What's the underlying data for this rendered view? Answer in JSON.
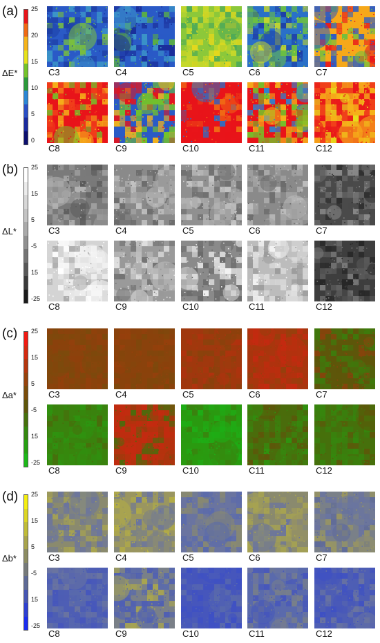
{
  "chart_data": [
    {
      "type": "heatmap",
      "panel_label": "(a)",
      "quantity": "ΔE*",
      "colorbar": {
        "ticks": [
          "25",
          "20",
          "15",
          "10",
          "5",
          "0"
        ],
        "colors": [
          "#e8141a",
          "#f06a14",
          "#f6b41a",
          "#e6e21c",
          "#74c32a",
          "#2a9a3a",
          "#2b86d4",
          "#2a4fc6",
          "#1a2a9e",
          "#0c0f6e"
        ]
      },
      "samples": [
        {
          "label": "C3",
          "colors": [
            "#2a5ac6",
            "#1e3fa6",
            "#3c96c8",
            "#7cc23a"
          ]
        },
        {
          "label": "C4",
          "colors": [
            "#2a5ac6",
            "#1a2e9a",
            "#3c96c8",
            "#5cb040"
          ]
        },
        {
          "label": "C5",
          "colors": [
            "#8cc83a",
            "#c8d82a",
            "#4aa85a",
            "#e6d81c"
          ]
        },
        {
          "label": "C6",
          "colors": [
            "#2a70c8",
            "#6cc040",
            "#1e3fa6",
            "#c8d82a"
          ]
        },
        {
          "label": "C7",
          "colors": [
            "#f6a81a",
            "#2a5ac6",
            "#e8141a",
            "#6cc040"
          ]
        },
        {
          "label": "C8",
          "colors": [
            "#e8141a",
            "#f0401a",
            "#f6b41a",
            "#74c32a"
          ]
        },
        {
          "label": "C9",
          "colors": [
            "#2a5ac6",
            "#74c32a",
            "#e8141a",
            "#f6b41a"
          ]
        },
        {
          "label": "C10",
          "colors": [
            "#e8141a",
            "#e8141a",
            "#f06a14",
            "#2a70c8"
          ]
        },
        {
          "label": "C11",
          "colors": [
            "#e8141a",
            "#74c32a",
            "#f6b41a",
            "#2a86d4"
          ]
        },
        {
          "label": "C12",
          "colors": [
            "#f0401a",
            "#f6b41a",
            "#e8141a",
            "#e6e21c"
          ]
        }
      ]
    },
    {
      "type": "heatmap",
      "panel_label": "(b)",
      "quantity": "ΔL*",
      "colorbar": {
        "ticks": [
          "25",
          "15",
          "5",
          "-5",
          "15",
          "-25"
        ],
        "colors": [
          "#ffffff",
          "#ececec",
          "#d8d8d8",
          "#c4c4c4",
          "#aaaaaa",
          "#909090",
          "#747474",
          "#585858",
          "#3a3a3a",
          "#1a1a1a"
        ]
      },
      "samples": [
        {
          "label": "C3",
          "colors": [
            "#7a7a7a",
            "#9a9a9a",
            "#5a5a5a",
            "#b4b4b4"
          ]
        },
        {
          "label": "C4",
          "colors": [
            "#8a8a8a",
            "#a8a8a8",
            "#6a6a6a",
            "#c4c4c4"
          ]
        },
        {
          "label": "C5",
          "colors": [
            "#909090",
            "#b0b0b0",
            "#6e6e6e",
            "#c8c8c8"
          ]
        },
        {
          "label": "C6",
          "colors": [
            "#8a8a8a",
            "#a4a4a4",
            "#6a6a6a",
            "#c0c0c0"
          ]
        },
        {
          "label": "C7",
          "colors": [
            "#4a4a4a",
            "#6a6a6a",
            "#2e2e2e",
            "#8a8a8a"
          ]
        },
        {
          "label": "C8",
          "colors": [
            "#d4d4d4",
            "#f0f0f0",
            "#a8a8a8",
            "#ffffff"
          ]
        },
        {
          "label": "C9",
          "colors": [
            "#9a9a9a",
            "#c0c0c0",
            "#747474",
            "#e0e0e0"
          ]
        },
        {
          "label": "C10",
          "colors": [
            "#8a8a8a",
            "#d8d8d8",
            "#6a6a6a",
            "#f4f4f4"
          ]
        },
        {
          "label": "C11",
          "colors": [
            "#bcbcbc",
            "#dcdcdc",
            "#9a9a9a",
            "#f4f4f4"
          ]
        },
        {
          "label": "C12",
          "colors": [
            "#3e3e3e",
            "#5a5a5a",
            "#262626",
            "#7a7a7a"
          ]
        }
      ]
    },
    {
      "type": "heatmap",
      "panel_label": "(c)",
      "quantity": "Δa*",
      "colorbar": {
        "ticks": [
          "25",
          "15",
          "5",
          "-5",
          "15",
          "-25"
        ],
        "colors": [
          "#f21a12",
          "#d42a10",
          "#b4360e",
          "#96420c",
          "#7a4c0a",
          "#5e560a",
          "#46700c",
          "#34880e",
          "#26a012",
          "#1cb818"
        ]
      },
      "samples": [
        {
          "label": "C3",
          "colors": [
            "#8a420c",
            "#7c4a0c",
            "#92400c",
            "#84460c"
          ]
        },
        {
          "label": "C4",
          "colors": [
            "#8a420c",
            "#7e480c",
            "#96400c",
            "#86460c"
          ]
        },
        {
          "label": "C5",
          "colors": [
            "#a0380e",
            "#8a420c",
            "#b0320e",
            "#96400c"
          ]
        },
        {
          "label": "C6",
          "colors": [
            "#a8360e",
            "#c42a10",
            "#96400c",
            "#b4300e"
          ]
        },
        {
          "label": "C7",
          "colors": [
            "#5e560a",
            "#3e7a0c",
            "#8a420c",
            "#4a6c0c"
          ]
        },
        {
          "label": "C8",
          "colors": [
            "#3a820e",
            "#2e9410",
            "#4a6c0c",
            "#36880e"
          ]
        },
        {
          "label": "C9",
          "colors": [
            "#b4320e",
            "#c42a10",
            "#4a6c0c",
            "#9a3c0c"
          ]
        },
        {
          "label": "C10",
          "colors": [
            "#2a9a10",
            "#1eae16",
            "#3a820e",
            "#26a012"
          ]
        },
        {
          "label": "C11",
          "colors": [
            "#4a6c0c",
            "#3a820e",
            "#5e560a",
            "#2e9410"
          ]
        },
        {
          "label": "C12",
          "colors": [
            "#46700c",
            "#34880e",
            "#5e560a",
            "#3a7e0e"
          ]
        }
      ]
    },
    {
      "type": "heatmap",
      "panel_label": "(d)",
      "quantity": "Δb*",
      "colorbar": {
        "ticks": [
          "25",
          "15",
          "5",
          "-5",
          "15",
          "-25"
        ],
        "colors": [
          "#f4ee12",
          "#dcd624",
          "#c0bc38",
          "#a8a44c",
          "#8c8c62",
          "#767a7a",
          "#5e6a96",
          "#4656b4",
          "#2e40d2",
          "#1a2cf0"
        ]
      },
      "samples": [
        {
          "label": "C3",
          "colors": [
            "#8a8a6e",
            "#6a74a0",
            "#a8a450",
            "#7a8088"
          ]
        },
        {
          "label": "C4",
          "colors": [
            "#9a9660",
            "#7a8088",
            "#b4ae44",
            "#6a74a0"
          ]
        },
        {
          "label": "C5",
          "colors": [
            "#6a74a0",
            "#5a6aac",
            "#8a8a6e",
            "#7a8088"
          ]
        },
        {
          "label": "C6",
          "colors": [
            "#8a8a6e",
            "#a8a450",
            "#6a74a0",
            "#9a9660"
          ]
        },
        {
          "label": "C7",
          "colors": [
            "#7a8088",
            "#6a74a0",
            "#9a9660",
            "#5e6a9a"
          ]
        },
        {
          "label": "C8",
          "colors": [
            "#4e5eb4",
            "#5a6aac",
            "#6a74a0",
            "#4656bc"
          ]
        },
        {
          "label": "C9",
          "colors": [
            "#7a8088",
            "#4e5eb4",
            "#a8a450",
            "#5a6aac"
          ]
        },
        {
          "label": "C10",
          "colors": [
            "#4656bc",
            "#3e50c4",
            "#5a6aac",
            "#4e5eb4"
          ]
        },
        {
          "label": "C11",
          "colors": [
            "#5a6aac",
            "#7a8088",
            "#4656bc",
            "#6a74a0"
          ]
        },
        {
          "label": "C12",
          "colors": [
            "#4e5eb4",
            "#4656bc",
            "#6a74a0",
            "#3e50c4"
          ]
        }
      ]
    }
  ]
}
